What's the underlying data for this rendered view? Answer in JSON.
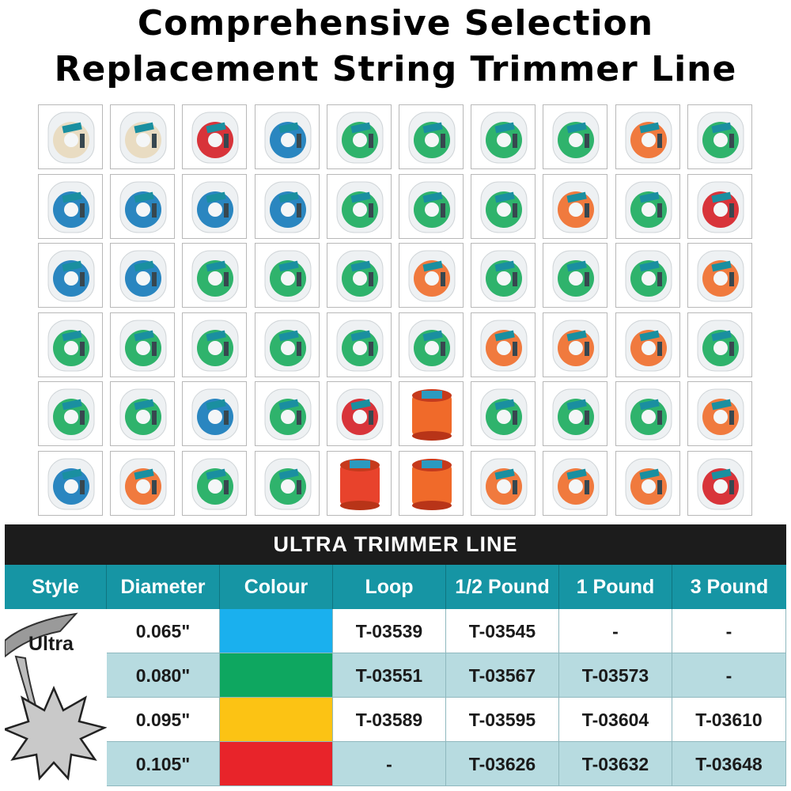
{
  "header": {
    "line1": "Comprehensive Selection",
    "line2": "Replacement String Trimmer Line"
  },
  "product_grid": {
    "rows": [
      [
        "cream",
        "cream",
        "red",
        "blue",
        "green",
        "green",
        "green",
        "green",
        "orange",
        "green"
      ],
      [
        "blue",
        "blue",
        "blue",
        "blue",
        "green",
        "green",
        "green",
        "orange",
        "green",
        "red"
      ],
      [
        "blue",
        "blue",
        "green",
        "green",
        "green",
        "orange",
        "green",
        "green",
        "green",
        "orange"
      ],
      [
        "green",
        "green",
        "green",
        "green",
        "green",
        "green",
        "orange",
        "orange",
        "orange",
        "green"
      ],
      [
        "green",
        "green",
        "blue",
        "green",
        "red",
        "spool-orange",
        "green",
        "green",
        "green",
        "orange"
      ],
      [
        "blue",
        "orange",
        "green",
        "green",
        "spool-red",
        "spool-orange",
        "orange",
        "orange",
        "orange",
        "red"
      ]
    ],
    "colors": {
      "cream": "#e9dcc2",
      "red": "#d8343a",
      "blue": "#2a86c0",
      "green": "#2fb36c",
      "orange": "#f07a3e",
      "spool-red": "#e8432c",
      "spool-orange": "#f06a2a"
    }
  },
  "table": {
    "title": "ULTRA TRIMMER LINE",
    "headers": [
      "Style",
      "Diameter",
      "Colour",
      "Loop",
      "1/2 Pound",
      "1 Pound",
      "3 Pound"
    ],
    "style_label": "Ultra",
    "rows": [
      {
        "diameter": "0.065\"",
        "colour": "#1ab0ee",
        "loop": "T-03539",
        "half": "T-03545",
        "one": "-",
        "three": "-"
      },
      {
        "diameter": "0.080\"",
        "colour": "#0ea760",
        "loop": "T-03551",
        "half": "T-03567",
        "one": "T-03573",
        "three": "-"
      },
      {
        "diameter": "0.095\"",
        "colour": "#fcc314",
        "loop": "T-03589",
        "half": "T-03595",
        "one": "T-03604",
        "three": "T-03610"
      },
      {
        "diameter": "0.105\"",
        "colour": "#e8242a",
        "loop": "-",
        "half": "T-03626",
        "one": "T-03632",
        "three": "T-03648"
      }
    ]
  },
  "icons": {
    "tile": "trimmer-line-package-icon",
    "style": "star-line-profile-icon"
  }
}
